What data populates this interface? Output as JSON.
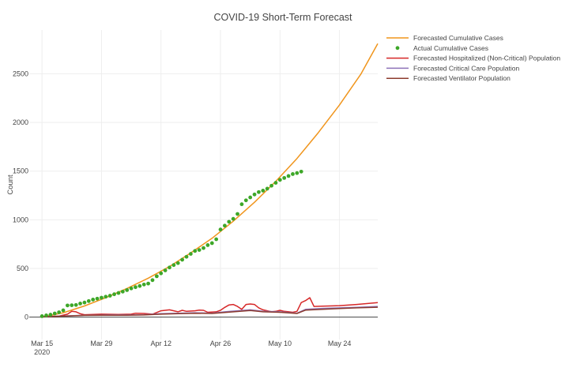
{
  "chart_data": {
    "type": "line",
    "title": "COVID-19 Short-Term Forecast",
    "xlabel": "",
    "ylabel": "Count",
    "xlim": [
      "2020-03-12",
      "2020-06-02"
    ],
    "ylim": [
      -230,
      2950
    ],
    "x_ticks": [
      {
        "date": "2020-03-15",
        "label": "Mar 15",
        "sublabel": "2020"
      },
      {
        "date": "2020-03-29",
        "label": "Mar 29"
      },
      {
        "date": "2020-04-12",
        "label": "Apr 12"
      },
      {
        "date": "2020-04-26",
        "label": "Apr 26"
      },
      {
        "date": "2020-05-10",
        "label": "May 10"
      },
      {
        "date": "2020-05-24",
        "label": "May 24"
      }
    ],
    "y_ticks": [
      0,
      500,
      1000,
      1500,
      2000,
      2500
    ],
    "grid": true,
    "legend_position": "top-right",
    "series": [
      {
        "name": "Forecasted Cumulative Cases",
        "type": "line",
        "color": "#f0951c",
        "points": [
          [
            "2020-03-15",
            0
          ],
          [
            "2020-03-20",
            45
          ],
          [
            "2020-03-25",
            115
          ],
          [
            "2020-03-30",
            200
          ],
          [
            "2020-04-04",
            295
          ],
          [
            "2020-04-09",
            400
          ],
          [
            "2020-04-14",
            520
          ],
          [
            "2020-04-19",
            660
          ],
          [
            "2020-04-24",
            810
          ],
          [
            "2020-04-29",
            985
          ],
          [
            "2020-05-04",
            1180
          ],
          [
            "2020-05-09",
            1395
          ],
          [
            "2020-05-14",
            1630
          ],
          [
            "2020-05-19",
            1895
          ],
          [
            "2020-05-24",
            2180
          ],
          [
            "2020-05-29",
            2495
          ],
          [
            "2020-06-02",
            2810
          ]
        ]
      },
      {
        "name": "Actual Cumulative Cases",
        "type": "scatter",
        "color": "#3da728",
        "points": [
          [
            "2020-03-15",
            10
          ],
          [
            "2020-03-16",
            18
          ],
          [
            "2020-03-17",
            25
          ],
          [
            "2020-03-18",
            38
          ],
          [
            "2020-03-19",
            50
          ],
          [
            "2020-03-20",
            70
          ],
          [
            "2020-03-21",
            120
          ],
          [
            "2020-03-22",
            122
          ],
          [
            "2020-03-23",
            125
          ],
          [
            "2020-03-24",
            140
          ],
          [
            "2020-03-25",
            150
          ],
          [
            "2020-03-26",
            165
          ],
          [
            "2020-03-27",
            180
          ],
          [
            "2020-03-28",
            190
          ],
          [
            "2020-03-29",
            200
          ],
          [
            "2020-03-30",
            210
          ],
          [
            "2020-03-31",
            220
          ],
          [
            "2020-04-01",
            235
          ],
          [
            "2020-04-02",
            248
          ],
          [
            "2020-04-03",
            262
          ],
          [
            "2020-04-04",
            278
          ],
          [
            "2020-04-05",
            295
          ],
          [
            "2020-04-06",
            308
          ],
          [
            "2020-04-07",
            320
          ],
          [
            "2020-04-08",
            335
          ],
          [
            "2020-04-09",
            345
          ],
          [
            "2020-04-10",
            380
          ],
          [
            "2020-04-11",
            420
          ],
          [
            "2020-04-12",
            450
          ],
          [
            "2020-04-13",
            480
          ],
          [
            "2020-04-14",
            510
          ],
          [
            "2020-04-15",
            535
          ],
          [
            "2020-04-16",
            555
          ],
          [
            "2020-04-17",
            590
          ],
          [
            "2020-04-18",
            620
          ],
          [
            "2020-04-19",
            650
          ],
          [
            "2020-04-20",
            680
          ],
          [
            "2020-04-21",
            690
          ],
          [
            "2020-04-22",
            710
          ],
          [
            "2020-04-23",
            740
          ],
          [
            "2020-04-24",
            760
          ],
          [
            "2020-04-25",
            800
          ],
          [
            "2020-04-26",
            900
          ],
          [
            "2020-04-27",
            940
          ],
          [
            "2020-04-28",
            980
          ],
          [
            "2020-04-29",
            1010
          ],
          [
            "2020-04-30",
            1060
          ],
          [
            "2020-05-01",
            1160
          ],
          [
            "2020-05-02",
            1200
          ],
          [
            "2020-05-03",
            1230
          ],
          [
            "2020-05-04",
            1260
          ],
          [
            "2020-05-05",
            1285
          ],
          [
            "2020-05-06",
            1300
          ],
          [
            "2020-05-07",
            1320
          ],
          [
            "2020-05-08",
            1350
          ],
          [
            "2020-05-09",
            1380
          ],
          [
            "2020-05-10",
            1410
          ],
          [
            "2020-05-11",
            1430
          ],
          [
            "2020-05-12",
            1450
          ],
          [
            "2020-05-13",
            1470
          ],
          [
            "2020-05-14",
            1480
          ],
          [
            "2020-05-15",
            1495
          ]
        ]
      },
      {
        "name": "Forecasted Hospitalized (Non-Critical) Population",
        "type": "line",
        "color": "#d62728",
        "points": [
          [
            "2020-03-15",
            5
          ],
          [
            "2020-03-19",
            10
          ],
          [
            "2020-03-21",
            30
          ],
          [
            "2020-03-22",
            60
          ],
          [
            "2020-03-23",
            55
          ],
          [
            "2020-03-24",
            35
          ],
          [
            "2020-03-25",
            25
          ],
          [
            "2020-03-27",
            28
          ],
          [
            "2020-03-29",
            30
          ],
          [
            "2020-04-02",
            28
          ],
          [
            "2020-04-05",
            30
          ],
          [
            "2020-04-06",
            40
          ],
          [
            "2020-04-08",
            38
          ],
          [
            "2020-04-10",
            30
          ],
          [
            "2020-04-12",
            65
          ],
          [
            "2020-04-14",
            75
          ],
          [
            "2020-04-16",
            55
          ],
          [
            "2020-04-17",
            70
          ],
          [
            "2020-04-18",
            60
          ],
          [
            "2020-04-20",
            65
          ],
          [
            "2020-04-21",
            72
          ],
          [
            "2020-04-22",
            70
          ],
          [
            "2020-04-23",
            50
          ],
          [
            "2020-04-25",
            55
          ],
          [
            "2020-04-26",
            70
          ],
          [
            "2020-04-27",
            100
          ],
          [
            "2020-04-28",
            125
          ],
          [
            "2020-04-29",
            130
          ],
          [
            "2020-04-30",
            110
          ],
          [
            "2020-05-01",
            80
          ],
          [
            "2020-05-02",
            130
          ],
          [
            "2020-05-03",
            135
          ],
          [
            "2020-05-04",
            130
          ],
          [
            "2020-05-05",
            95
          ],
          [
            "2020-05-06",
            75
          ],
          [
            "2020-05-07",
            65
          ],
          [
            "2020-05-08",
            55
          ],
          [
            "2020-05-09",
            60
          ],
          [
            "2020-05-10",
            70
          ],
          [
            "2020-05-11",
            60
          ],
          [
            "2020-05-12",
            55
          ],
          [
            "2020-05-13",
            50
          ],
          [
            "2020-05-14",
            60
          ],
          [
            "2020-05-15",
            150
          ],
          [
            "2020-05-16",
            170
          ],
          [
            "2020-05-17",
            200
          ],
          [
            "2020-05-18",
            110
          ],
          [
            "2020-05-20",
            112
          ],
          [
            "2020-05-24",
            118
          ],
          [
            "2020-05-28",
            130
          ],
          [
            "2020-06-02",
            150
          ]
        ]
      },
      {
        "name": "Forecasted Critical Care Population",
        "type": "line",
        "color": "#8e72b8",
        "points": [
          [
            "2020-03-15",
            3
          ],
          [
            "2020-03-20",
            12
          ],
          [
            "2020-03-25",
            20
          ],
          [
            "2020-03-30",
            22
          ],
          [
            "2020-04-04",
            22
          ],
          [
            "2020-04-08",
            25
          ],
          [
            "2020-04-12",
            35
          ],
          [
            "2020-04-16",
            40
          ],
          [
            "2020-04-20",
            45
          ],
          [
            "2020-04-24",
            40
          ],
          [
            "2020-04-27",
            55
          ],
          [
            "2020-04-30",
            65
          ],
          [
            "2020-05-03",
            75
          ],
          [
            "2020-05-06",
            60
          ],
          [
            "2020-05-10",
            55
          ],
          [
            "2020-05-14",
            40
          ],
          [
            "2020-05-16",
            80
          ],
          [
            "2020-05-20",
            90
          ],
          [
            "2020-05-24",
            95
          ],
          [
            "2020-05-28",
            100
          ],
          [
            "2020-06-02",
            110
          ]
        ]
      },
      {
        "name": "Forecasted Ventilator Population",
        "type": "line",
        "color": "#8c3b2e",
        "points": [
          [
            "2020-03-15",
            2
          ],
          [
            "2020-03-20",
            10
          ],
          [
            "2020-03-25",
            18
          ],
          [
            "2020-03-30",
            20
          ],
          [
            "2020-04-04",
            20
          ],
          [
            "2020-04-08",
            22
          ],
          [
            "2020-04-12",
            30
          ],
          [
            "2020-04-16",
            35
          ],
          [
            "2020-04-20",
            40
          ],
          [
            "2020-04-24",
            38
          ],
          [
            "2020-04-27",
            48
          ],
          [
            "2020-04-30",
            58
          ],
          [
            "2020-05-03",
            68
          ],
          [
            "2020-05-06",
            55
          ],
          [
            "2020-05-10",
            50
          ],
          [
            "2020-05-14",
            38
          ],
          [
            "2020-05-16",
            72
          ],
          [
            "2020-05-20",
            80
          ],
          [
            "2020-05-24",
            88
          ],
          [
            "2020-05-28",
            95
          ],
          [
            "2020-06-02",
            102
          ]
        ]
      }
    ]
  }
}
